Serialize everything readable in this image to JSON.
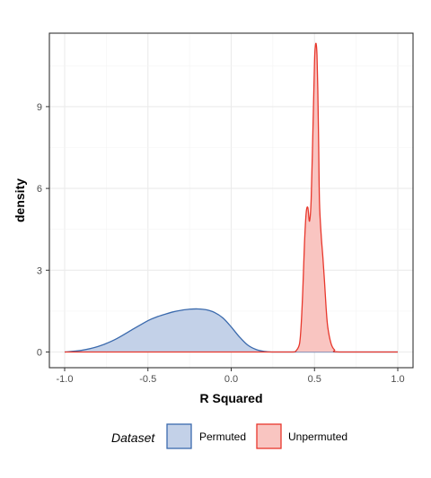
{
  "chart_data": {
    "type": "area",
    "subtype": "density",
    "title": "",
    "xlabel": "R Squared",
    "ylabel": "density",
    "xlim": [
      -1.0,
      1.0
    ],
    "ylim": [
      0,
      11.8
    ],
    "x_ticks": [
      -1.0,
      -0.5,
      0.0,
      0.5,
      1.0
    ],
    "x_tick_labels": [
      "-1.0",
      "-0.5",
      "0.0",
      "0.5",
      "1.0"
    ],
    "y_ticks": [
      0,
      3,
      6,
      9
    ],
    "y_tick_labels": [
      "0",
      "3",
      "6",
      "9"
    ],
    "grid": true,
    "legend": {
      "title": "Dataset",
      "position": "bottom"
    },
    "series": [
      {
        "name": "Permuted",
        "line_color": "#3b6aad",
        "fill_color": "#c3d1e8",
        "x": [
          -1.0,
          -0.9,
          -0.8,
          -0.7,
          -0.6,
          -0.5,
          -0.45,
          -0.4,
          -0.35,
          -0.3,
          -0.25,
          -0.2,
          -0.15,
          -0.1,
          -0.05,
          0.0,
          0.05,
          0.1,
          0.15,
          0.2,
          0.25,
          0.3,
          0.4,
          0.5,
          0.6,
          1.0
        ],
        "y": [
          0.0,
          0.06,
          0.2,
          0.45,
          0.8,
          1.15,
          1.28,
          1.38,
          1.47,
          1.53,
          1.57,
          1.58,
          1.55,
          1.45,
          1.25,
          0.92,
          0.55,
          0.25,
          0.09,
          0.02,
          0.0,
          0.0,
          0.0,
          0.0,
          0.0,
          0.0
        ]
      },
      {
        "name": "Unpermuted",
        "line_color": "#e8372c",
        "fill_color": "#f9c5c1",
        "x": [
          -1.0,
          0.0,
          0.3,
          0.37,
          0.39,
          0.41,
          0.42,
          0.43,
          0.44,
          0.45,
          0.46,
          0.47,
          0.48,
          0.49,
          0.5,
          0.505,
          0.51,
          0.515,
          0.52,
          0.525,
          0.53,
          0.54,
          0.55,
          0.56,
          0.57,
          0.58,
          0.6,
          0.62,
          0.65,
          1.0
        ],
        "y": [
          0.0,
          0.0,
          0.0,
          0.0,
          0.05,
          0.3,
          1.0,
          2.3,
          4.0,
          5.1,
          5.3,
          4.8,
          5.6,
          8.0,
          10.6,
          11.2,
          11.3,
          10.9,
          9.6,
          7.6,
          5.5,
          4.3,
          3.5,
          2.6,
          1.6,
          0.9,
          0.3,
          0.08,
          0.0,
          0.0
        ]
      }
    ]
  }
}
